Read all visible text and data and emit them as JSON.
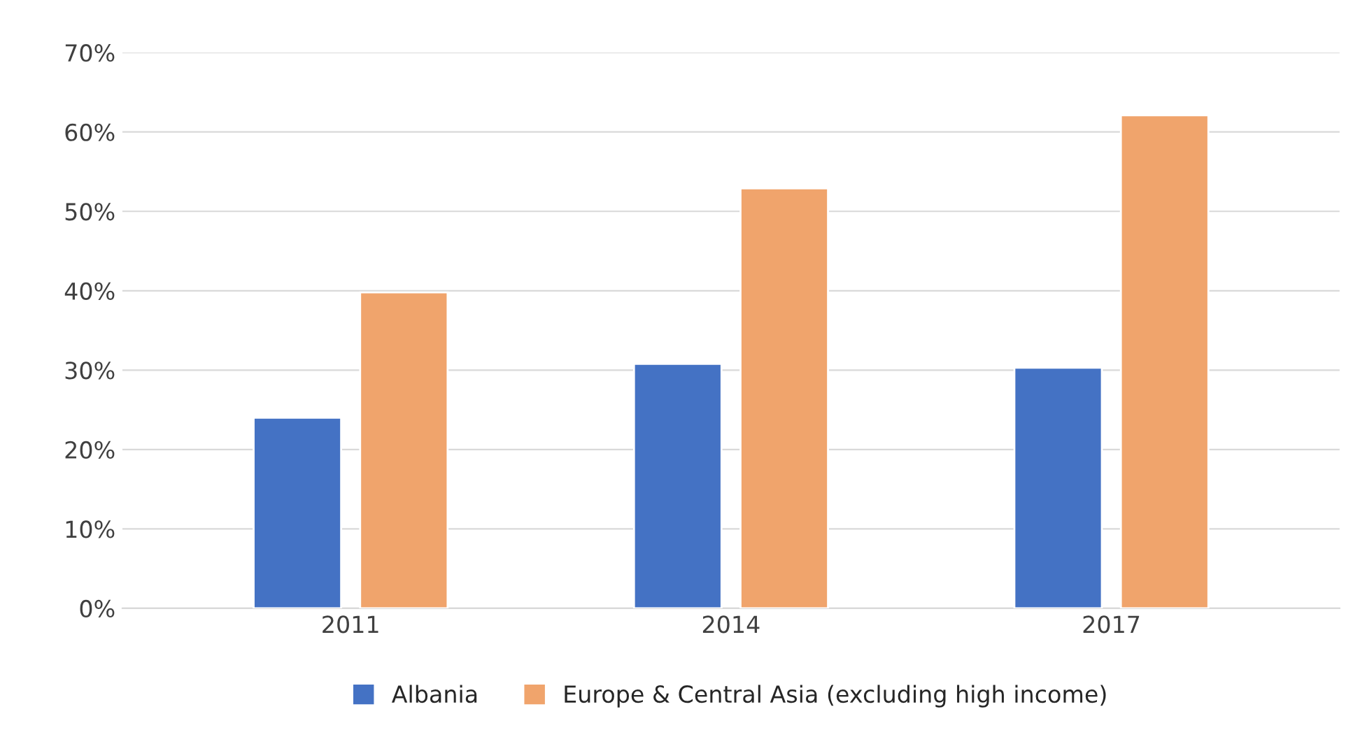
{
  "chart_data": {
    "type": "bar",
    "categories": [
      "2011",
      "2014",
      "2017"
    ],
    "series": [
      {
        "name": "Albania",
        "color": "#4472c4",
        "values": [
          24.0,
          30.8,
          30.3
        ]
      },
      {
        "name": "Europe & Central Asia (excluding high income)",
        "color": "#f0a46c",
        "values": [
          39.8,
          52.9,
          62.1
        ]
      }
    ],
    "ylim": [
      0,
      70
    ],
    "yticks": [
      {
        "value": 0,
        "label": "0%"
      },
      {
        "value": 10,
        "label": "10%"
      },
      {
        "value": 20,
        "label": "20%"
      },
      {
        "value": 30,
        "label": "30%"
      },
      {
        "value": 40,
        "label": "40%"
      },
      {
        "value": 50,
        "label": "50%"
      },
      {
        "value": 60,
        "label": "60%"
      },
      {
        "value": 70,
        "label": "70%"
      }
    ],
    "grid": "y",
    "legend": "bottom"
  }
}
